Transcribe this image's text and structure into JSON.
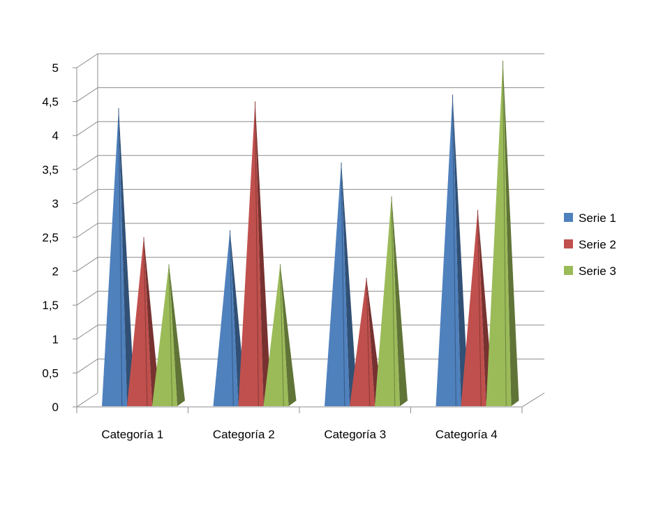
{
  "chart_data": {
    "type": "bar",
    "style": "3d-pyramid",
    "categories": [
      "Categoría 1",
      "Categoría 2",
      "Categoría 3",
      "Categoría 4"
    ],
    "series": [
      {
        "name": "Serie 1",
        "color": "#4F81BD",
        "values": [
          4.3,
          2.5,
          3.5,
          4.5
        ]
      },
      {
        "name": "Serie 2",
        "color": "#C0504D",
        "values": [
          2.4,
          4.4,
          1.8,
          2.8
        ]
      },
      {
        "name": "Serie 3",
        "color": "#9BBB59",
        "values": [
          2.0,
          2.0,
          3.0,
          5.0
        ]
      }
    ],
    "y_ticks": [
      "0",
      "0,5",
      "1",
      "1,5",
      "2",
      "2,5",
      "3",
      "3,5",
      "4",
      "4,5",
      "5"
    ],
    "ylim": [
      0,
      5
    ],
    "grid": true,
    "legend_position": "right"
  }
}
